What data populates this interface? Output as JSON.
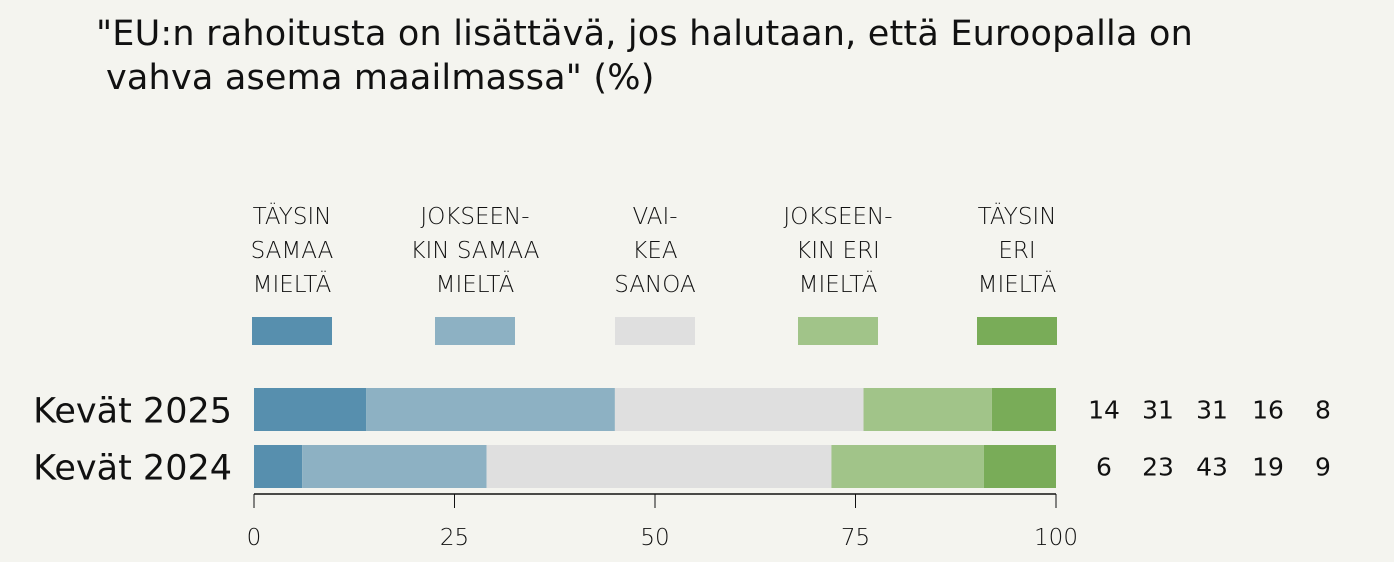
{
  "chart_data": {
    "type": "bar",
    "orientation": "horizontal",
    "stacked": true,
    "title_lines": [
      "\"EU:n rahoitusta on lisättävä, jos halutaan, että Euroopalla on",
      "vahva asema maailmassa\" (%)"
    ],
    "categories": [
      "Kevät 2025",
      "Kevät 2024"
    ],
    "series": [
      {
        "name": "TÄYSIN SAMAA MIELTÄ",
        "label_lines": [
          "TÄYSIN",
          "SAMAA",
          "MIELTÄ"
        ],
        "color": "#578fae",
        "values": [
          14,
          6
        ]
      },
      {
        "name": "JOKSEENKIN SAMAA MIELTÄ",
        "label_lines": [
          "JOKSEEN-",
          "KIN SAMAA",
          "MIELTÄ"
        ],
        "color": "#8db1c3",
        "values": [
          31,
          23
        ]
      },
      {
        "name": "VAIKEA SANOA",
        "label_lines": [
          "VAI-",
          "KEA",
          "SANOA"
        ],
        "color": "#dfdfdf",
        "values": [
          31,
          43
        ]
      },
      {
        "name": "JOKSEENKIN ERI MIELTÄ",
        "label_lines": [
          "JOKSEEN-",
          "KIN ERI",
          "MIELTÄ"
        ],
        "color": "#a1c489",
        "values": [
          16,
          19
        ]
      },
      {
        "name": "TÄYSIN ERI MIELTÄ",
        "label_lines": [
          "TÄYSIN",
          "ERI",
          "MIELTÄ"
        ],
        "color": "#79ac58",
        "values": [
          8,
          9
        ]
      }
    ],
    "xlim": [
      0,
      100
    ],
    "xticks": [
      0,
      25,
      50,
      75,
      100
    ],
    "xlabel": "",
    "ylabel": "",
    "grid": false,
    "legend_position": "top"
  }
}
